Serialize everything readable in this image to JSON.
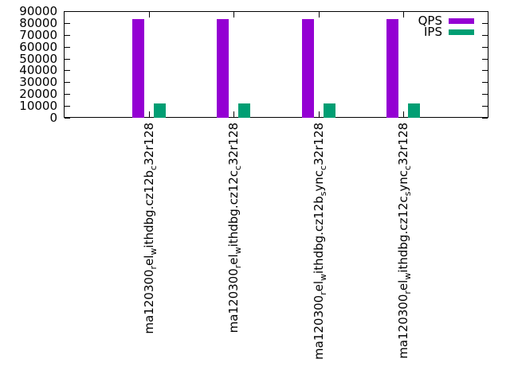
{
  "chart_data": {
    "type": "bar",
    "title": "",
    "xlabel": "",
    "ylabel": "",
    "ylim": [
      0,
      90000
    ],
    "ytick_step": 10000,
    "ytick_labels": [
      "0",
      "10000",
      "20000",
      "30000",
      "40000",
      "50000",
      "60000",
      "70000",
      "80000",
      "90000"
    ],
    "grid": false,
    "legend_position": "top-right-inside",
    "categories": [
      {
        "segments": [
          {
            "text": "ma120300"
          },
          {
            "text": "r",
            "sub": true
          },
          {
            "text": "el"
          },
          {
            "text": "w",
            "sub": true
          },
          {
            "text": "ithdbg.cz12b"
          },
          {
            "text": "c",
            "sub": true
          },
          {
            "text": "32r128"
          }
        ]
      },
      {
        "segments": [
          {
            "text": "ma120300"
          },
          {
            "text": "r",
            "sub": true
          },
          {
            "text": "el"
          },
          {
            "text": "w",
            "sub": true
          },
          {
            "text": "ithdbg.cz12c"
          },
          {
            "text": "c",
            "sub": true
          },
          {
            "text": "32r128"
          }
        ]
      },
      {
        "segments": [
          {
            "text": "ma120300"
          },
          {
            "text": "r",
            "sub": true
          },
          {
            "text": "el"
          },
          {
            "text": "w",
            "sub": true
          },
          {
            "text": "ithdbg.cz12b"
          },
          {
            "text": "s",
            "sub": true
          },
          {
            "text": "ync"
          },
          {
            "text": "c",
            "sub": true
          },
          {
            "text": "32r128"
          }
        ]
      },
      {
        "segments": [
          {
            "text": "ma120300"
          },
          {
            "text": "r",
            "sub": true
          },
          {
            "text": "el"
          },
          {
            "text": "w",
            "sub": true
          },
          {
            "text": "ithdbg.cz12c"
          },
          {
            "text": "s",
            "sub": true
          },
          {
            "text": "ync"
          },
          {
            "text": "c",
            "sub": true
          },
          {
            "text": "32r128"
          }
        ]
      }
    ],
    "series": [
      {
        "name": "QPS",
        "color": "#9400d3",
        "values": [
          83000,
          83000,
          83000,
          83000
        ]
      },
      {
        "name": "IPS",
        "color": "#009e73",
        "values": [
          12000,
          12000,
          12000,
          12000
        ]
      }
    ]
  },
  "colors": {
    "background": "#ffffff",
    "axis": "#000000",
    "text": "#000000",
    "qps": "#9400d3",
    "ips": "#009e73"
  }
}
